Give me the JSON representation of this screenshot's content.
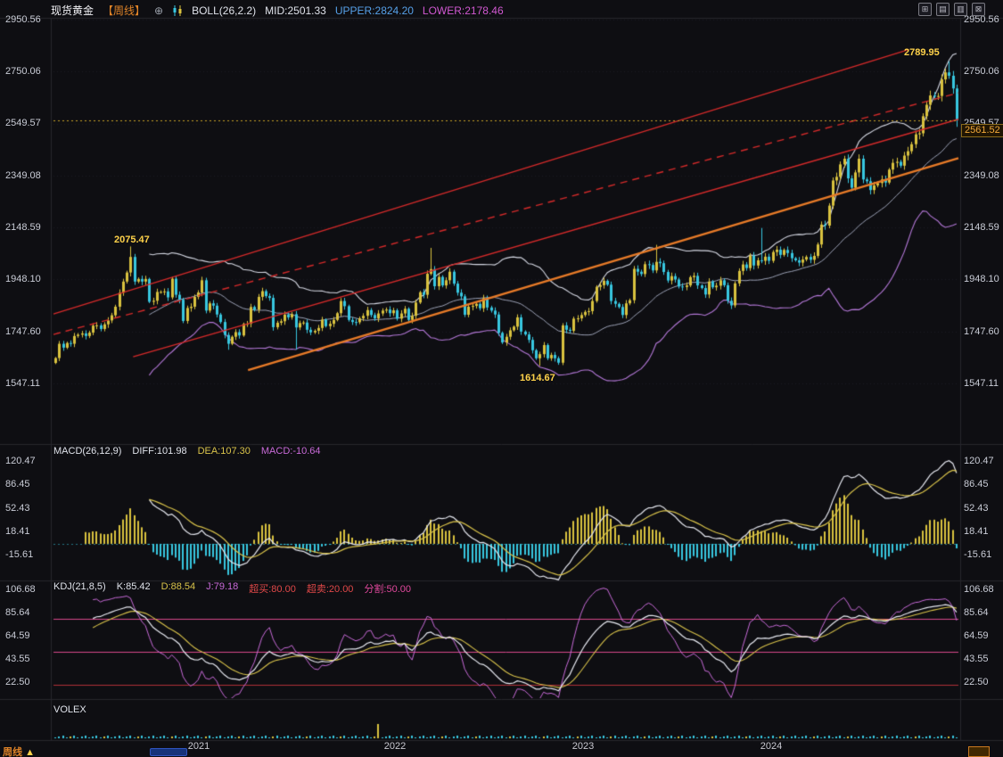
{
  "header": {
    "symbol": "现货黄金",
    "period_tag": "【周线】",
    "add_icon": "⊕",
    "boll_label": "BOLL(26,2.2)",
    "boll_mid": "MID:2501.33",
    "boll_upper": "UPPER:2824.20",
    "boll_lower": "LOWER:2178.46",
    "window_icons": [
      {
        "name": "layout-grid-icon",
        "glyph": "⊞"
      },
      {
        "name": "layout-rows-icon",
        "glyph": "▤"
      },
      {
        "name": "layout-columns-icon",
        "glyph": "▥"
      },
      {
        "name": "layout-close-icon",
        "glyph": "⊠"
      }
    ]
  },
  "main_axis": {
    "labels": [
      "2950.56",
      "2750.06",
      "2549.57",
      "2349.08",
      "2148.59",
      "1948.10",
      "1747.60",
      "1547.11"
    ]
  },
  "annotations": {
    "peak_2020": "2075.47",
    "low_2022": "1614.67",
    "peak_2024": "2789.95",
    "current_price_tag": "2561.52"
  },
  "macd_row": {
    "label": "MACD(26,12,9)",
    "diff": "DIFF:101.98",
    "dea": "DEA:107.30",
    "macd": "MACD:-10.64",
    "axis": [
      "120.47",
      "86.45",
      "52.43",
      "18.41",
      "-15.61"
    ]
  },
  "kdj_row": {
    "label": "KDJ(21,8,5)",
    "k": "K:85.42",
    "d": "D:88.54",
    "j": "J:79.18",
    "overbought": "超买:80.00",
    "oversold": "超卖:20.00",
    "divide": "分割:50.00",
    "axis": [
      "106.68",
      "85.64",
      "64.59",
      "43.55",
      "22.50"
    ]
  },
  "volex": {
    "label": "VOLEX",
    "spike_index": 86,
    "spike_height": 16
  },
  "x_axis": {
    "years": [
      "2021",
      "2022",
      "2023",
      "2024"
    ],
    "year_weeks": [
      38,
      90,
      140,
      190
    ]
  },
  "bottom_bar": {
    "period": "周线",
    "arrow": "▲"
  },
  "colors": {
    "background": "#0e0e12",
    "up": "#d9c23f",
    "down": "#38c7e0",
    "boll_upper": "#d6d9e4",
    "boll_mid": "#9aa0b4",
    "boll_lower": "#b478d8",
    "diff_line": "#e6e8f0",
    "dea_line": "#d8c24a",
    "k_line": "#e8eaf2",
    "d_line": "#d8c24a",
    "j_line": "#c86ad8",
    "price_line": "#c9a227",
    "overbought_line": "#d8488c",
    "divide_line": "#d8488c",
    "oversold_line": "#b03038",
    "separator": "#26262c",
    "grid": "rgba(160,160,175,0.10)"
  },
  "chart_data": {
    "type": "candlestick",
    "title": "现货黄金 周线 (Spot Gold, weekly, with BOLL / MACD / KDJ / VOLEX)",
    "x_start_approx": "2020-04",
    "x_end_approx": "2024-11",
    "ylim": [
      1430,
      2990
    ],
    "axis_values": [
      2950.56,
      2750.06,
      2549.57,
      2349.08,
      2148.59,
      1948.1,
      1747.6,
      1547.11
    ],
    "first_open": 1626,
    "closes": [
      1645,
      1700,
      1685,
      1703,
      1700,
      1730,
      1735,
      1740,
      1730,
      1743,
      1770,
      1771,
      1757,
      1775,
      1790,
      1810,
      1843,
      1897,
      1940,
      1975,
      2035,
      1940,
      1950,
      1940,
      1950,
      1862,
      1866,
      1900,
      1900,
      1902,
      1879,
      1951,
      1889,
      1870,
      1788,
      1838,
      1843,
      1881,
      1898,
      1945,
      1828,
      1856,
      1847,
      1813,
      1784,
      1734,
      1700,
      1727,
      1745,
      1732,
      1777,
      1777,
      1842,
      1831,
      1881,
      1903,
      1884,
      1877,
      1764,
      1781,
      1787,
      1812,
      1802,
      1814,
      1763,
      1780,
      1782,
      1754,
      1744,
      1750,
      1761,
      1793,
      1768,
      1777,
      1792,
      1818,
      1865,
      1845,
      1792,
      1784,
      1783,
      1798,
      1808,
      1830,
      1811,
      1798,
      1817,
      1828,
      1832,
      1818,
      1829,
      1797,
      1817,
      1835,
      1792,
      1808,
      1859,
      1899,
      1889,
      1970,
      1988,
      1922,
      1958,
      1925,
      1945,
      1978,
      1932,
      1897,
      1883,
      1812,
      1843,
      1846,
      1854,
      1837,
      1876,
      1840,
      1828,
      1813,
      1742,
      1705,
      1727,
      1752,
      1766,
      1802,
      1747,
      1736,
      1715,
      1675,
      1644,
      1660,
      1695,
      1644,
      1657,
      1644,
      1627,
      1771,
      1754,
      1750,
      1797,
      1798,
      1811,
      1823,
      1826,
      1865,
      1920,
      1926,
      1943,
      1928,
      1865,
      1854,
      1842,
      1811,
      1856,
      1868,
      1989,
      1978,
      1969,
      2007,
      2004,
      1983,
      2016,
      2011,
      1977,
      1944,
      1961,
      1948,
      1921,
      1919,
      1925,
      1957,
      1962,
      1925,
      1915,
      1890,
      1940,
      1918,
      1924,
      1945,
      1926,
      1866,
      1848,
      1933,
      1981,
      2006,
      1992,
      2040,
      2002,
      2022,
      2020,
      2036,
      2020,
      2054,
      2063,
      2043,
      2062,
      2050,
      2030,
      2022,
      2013,
      2025,
      2035,
      2024,
      2039,
      2083,
      2160,
      2156,
      2233,
      2330,
      2344,
      2392,
      2414,
      2338,
      2302,
      2361,
      2414,
      2334,
      2327,
      2293,
      2311,
      2320,
      2334,
      2322,
      2372,
      2398,
      2402,
      2387,
      2426,
      2443,
      2470,
      2508,
      2512,
      2578,
      2622,
      2658,
      2654,
      2656,
      2720,
      2747,
      2734,
      2685,
      2561.52
    ],
    "extreme_overrides": {
      "20": {
        "high": 2075.47
      },
      "46": {
        "low": 1676.9
      },
      "64": {
        "low": 1677.2
      },
      "100": {
        "high": 2069.9
      },
      "129": {
        "low": 1614.67
      },
      "160": {
        "high": 2081.8
      },
      "188": {
        "high": 2146.8
      },
      "238": {
        "high": 2789.95
      },
      "240": {
        "low": 2536.9
      }
    },
    "indicators": {
      "boll": {
        "n": 26,
        "k": 2.2,
        "mid": 2501.33,
        "upper": 2824.2,
        "lower": 2178.46
      },
      "macd": {
        "fast": 12,
        "slow": 26,
        "signal": 9,
        "diff": 101.98,
        "dea": 107.3,
        "macd": -10.64,
        "axis_values": [
          120.47,
          86.45,
          52.43,
          18.41,
          -15.61
        ]
      },
      "kdj": {
        "n": 21,
        "m1": 8,
        "m2": 5,
        "k": 85.42,
        "d": 88.54,
        "j": 79.18,
        "overbought": 80.0,
        "oversold": 20.0,
        "divide": 50.0,
        "axis_values": [
          106.68,
          85.64,
          64.59,
          43.55,
          22.5
        ]
      }
    },
    "kdj_hlines": [
      80,
      50,
      20
    ],
    "current_price": 2561.52,
    "key_points": [
      {
        "week": 20,
        "price": 2075.47,
        "label": "2075.47"
      },
      {
        "week": 129,
        "price": 1614.67,
        "label": "1614.67"
      },
      {
        "week": 238,
        "price": 2789.95,
        "label": "2789.95"
      }
    ],
    "trend_lines": [
      {
        "name": "channel-upper-solid",
        "color": "#d42a2a",
        "style": "solid",
        "width": 1.4,
        "x1": 0.0,
        "p1": 1815,
        "x2": 0.945,
        "p2": 2835
      },
      {
        "name": "channel-dashed",
        "color": "#d42a2a",
        "style": "dashed",
        "width": 1.4,
        "x1": 0.0,
        "p1": 1736,
        "x2": 1.0,
        "p2": 2668
      },
      {
        "name": "channel-lower-solid",
        "color": "#d42a2a",
        "style": "solid",
        "width": 1.4,
        "x1": 0.088,
        "p1": 1650,
        "x2": 1.0,
        "p2": 2566
      },
      {
        "name": "support-orange",
        "color": "#e87b28",
        "style": "solid",
        "width": 2.4,
        "x1": 0.215,
        "p1": 1598,
        "x2": 1.0,
        "p2": 2416
      }
    ]
  }
}
